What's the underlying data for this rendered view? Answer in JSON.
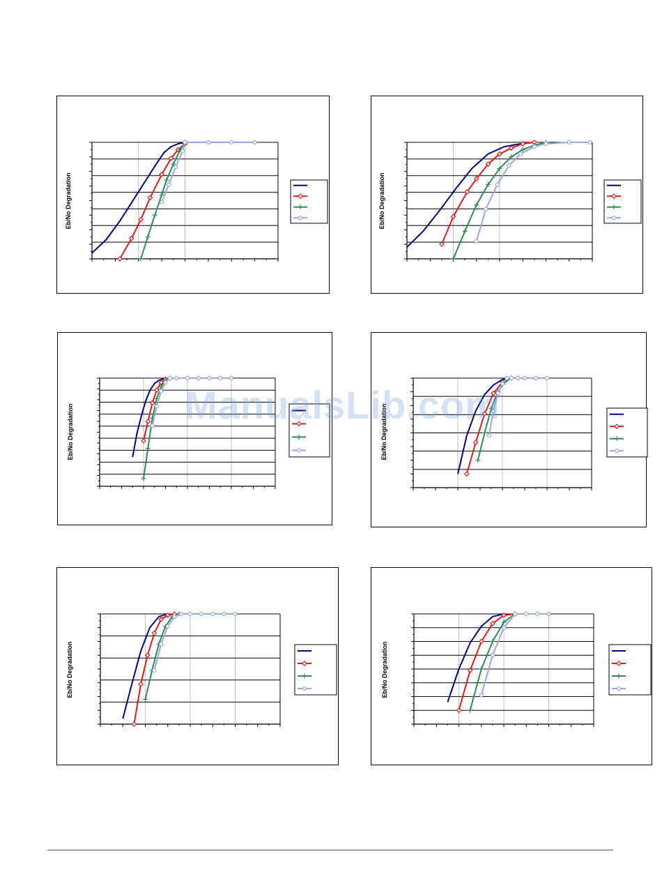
{
  "page": {
    "watermark": "ManualsLib.com"
  },
  "colors": {
    "series": [
      "#000080",
      "#e31a1c",
      "#2e8b57",
      "#9aa5e6"
    ],
    "grid_h": "#000000",
    "grid_v": "#c0c0c0",
    "axis": "#000000"
  },
  "chart_data": [
    {
      "type": "line",
      "ylabel": "Eb/No Degradation",
      "xlim": [
        0,
        8
      ],
      "ylim": [
        0,
        8
      ],
      "x_ticks": 16,
      "y_ticks": 16,
      "series": [
        {
          "marker": "none",
          "x": [
            0,
            0.6,
            1.2,
            1.8,
            2.4,
            2.8,
            3.1,
            3.4,
            3.7,
            4.0
          ],
          "y": [
            0.4,
            1.3,
            2.6,
            4.1,
            5.6,
            6.6,
            7.3,
            7.7,
            7.9,
            8.0
          ]
        },
        {
          "marker": "diamond",
          "x": [
            1.2,
            1.7,
            2.1,
            2.5,
            3.0,
            3.4,
            3.7,
            4.0
          ],
          "y": [
            0,
            1.4,
            2.7,
            4.2,
            5.8,
            6.9,
            7.5,
            7.9
          ]
        },
        {
          "marker": "plus",
          "x": [
            2.1,
            2.4,
            2.7,
            3.0,
            3.2,
            3.5,
            3.8,
            4.0
          ],
          "y": [
            0,
            1.5,
            3.0,
            4.4,
            5.4,
            6.5,
            7.5,
            8.0
          ]
        },
        {
          "marker": "circle",
          "x": [
            3.0,
            3.3,
            3.6,
            3.9,
            4.0,
            5.0,
            6.0,
            7.0
          ],
          "y": [
            3.9,
            5.1,
            6.3,
            7.4,
            8.0,
            8.0,
            8.0,
            8.0
          ]
        }
      ]
    },
    {
      "type": "line",
      "ylabel": "Eb/No Degradation",
      "xlim": [
        0,
        8
      ],
      "ylim": [
        0,
        8
      ],
      "x_ticks": 16,
      "y_ticks": 16,
      "series": [
        {
          "marker": "none",
          "x": [
            0,
            0.7,
            1.4,
            2.1,
            2.8,
            3.5,
            4.2,
            4.9,
            5.5
          ],
          "y": [
            0.8,
            1.9,
            3.3,
            4.8,
            6.2,
            7.2,
            7.7,
            7.9,
            8.0
          ]
        },
        {
          "marker": "diamond",
          "x": [
            1.5,
            2.0,
            2.6,
            3.0,
            3.5,
            4.0,
            4.5,
            5.0,
            5.5
          ],
          "y": [
            1.0,
            2.9,
            4.6,
            5.5,
            6.5,
            7.2,
            7.6,
            7.9,
            8.0
          ]
        },
        {
          "marker": "plus",
          "x": [
            2.0,
            2.5,
            3.0,
            3.5,
            4.0,
            4.5,
            5.0,
            5.5,
            6.0
          ],
          "y": [
            0,
            1.9,
            3.7,
            5.1,
            6.2,
            7.0,
            7.5,
            7.8,
            8.0
          ]
        },
        {
          "marker": "circle",
          "x": [
            3.0,
            3.4,
            3.9,
            4.4,
            4.9,
            5.5,
            6.0,
            7.0,
            7.9
          ],
          "y": [
            1.2,
            3.4,
            5.1,
            6.4,
            7.2,
            7.7,
            7.9,
            8.0,
            8.0
          ]
        }
      ]
    },
    {
      "type": "line",
      "ylabel": "Eb/No Degradation",
      "xlim": [
        0,
        8
      ],
      "ylim": [
        0,
        10
      ],
      "x_ticks": 16,
      "y_ticks": 20,
      "series": [
        {
          "marker": "none",
          "x": [
            1.5,
            1.7,
            1.9,
            2.1,
            2.3,
            2.5,
            2.7,
            3.0
          ],
          "y": [
            2.7,
            4.9,
            6.5,
            7.9,
            8.9,
            9.5,
            9.8,
            10.0
          ]
        },
        {
          "marker": "diamond",
          "x": [
            2.0,
            2.2,
            2.4,
            2.6,
            2.8,
            3.0,
            3.2
          ],
          "y": [
            4.2,
            6.0,
            7.7,
            8.9,
            9.6,
            9.9,
            10.0
          ]
        },
        {
          "marker": "plus",
          "x": [
            2.0,
            2.2,
            2.4,
            2.6,
            2.8,
            3.0,
            3.2
          ],
          "y": [
            0.7,
            3.5,
            6.3,
            8.1,
            9.2,
            9.8,
            10.0
          ]
        },
        {
          "marker": "circle",
          "x": [
            2.4,
            2.6,
            2.8,
            3.0,
            3.2,
            3.5,
            4.0,
            4.5,
            5.0,
            5.5,
            6.0
          ],
          "y": [
            5.6,
            7.4,
            8.8,
            9.6,
            10.0,
            10.0,
            10.0,
            10.0,
            10.0,
            10.0,
            10.0
          ]
        }
      ]
    },
    {
      "type": "line",
      "ylabel": "Eb/No Degradation",
      "xlim": [
        0,
        8
      ],
      "ylim": [
        0,
        8
      ],
      "x_ticks": 16,
      "y_ticks": 16,
      "series": [
        {
          "marker": "none",
          "x": [
            2.0,
            2.4,
            2.8,
            3.2,
            3.6,
            4.0,
            4.4
          ],
          "y": [
            1.0,
            3.8,
            5.6,
            6.8,
            7.5,
            7.9,
            8.0
          ]
        },
        {
          "marker": "diamond",
          "x": [
            2.4,
            2.8,
            3.2,
            3.6,
            4.0,
            4.4
          ],
          "y": [
            1.0,
            3.3,
            5.4,
            6.9,
            7.7,
            8.0
          ]
        },
        {
          "marker": "plus",
          "x": [
            2.9,
            3.2,
            3.5,
            3.8,
            4.1,
            4.4,
            4.7
          ],
          "y": [
            2.0,
            4.0,
            5.8,
            7.0,
            7.7,
            8.0,
            8.0
          ]
        },
        {
          "marker": "circle",
          "x": [
            3.4,
            3.6,
            3.8,
            4.0,
            4.2,
            4.4,
            4.7,
            5.0,
            5.5,
            6.0
          ],
          "y": [
            3.8,
            5.6,
            6.9,
            7.6,
            8.0,
            8.0,
            8.0,
            8.0,
            8.0,
            8.0
          ]
        }
      ]
    },
    {
      "type": "line",
      "ylabel": "Eb/No Degradation",
      "xlim": [
        0,
        8
      ],
      "ylim": [
        0,
        8
      ],
      "x_ticks": 16,
      "y_ticks": 16,
      "series": [
        {
          "marker": "none",
          "x": [
            1.0,
            1.4,
            1.8,
            2.2,
            2.6,
            3.0
          ],
          "y": [
            0.4,
            2.9,
            5.3,
            7.0,
            7.8,
            8.0
          ]
        },
        {
          "marker": "diamond",
          "x": [
            1.5,
            1.8,
            2.1,
            2.4,
            2.7,
            3.0,
            3.3
          ],
          "y": [
            0,
            2.9,
            5.0,
            6.6,
            7.6,
            7.9,
            8.0
          ]
        },
        {
          "marker": "plus",
          "x": [
            2.0,
            2.3,
            2.6,
            2.9,
            3.2,
            3.5
          ],
          "y": [
            1.8,
            3.9,
            5.8,
            7.1,
            7.8,
            8.0
          ]
        },
        {
          "marker": "circle",
          "x": [
            2.4,
            2.7,
            3.0,
            3.3,
            3.6,
            4.0,
            4.5,
            5.0,
            5.5,
            6.0
          ],
          "y": [
            3.9,
            5.8,
            7.1,
            7.8,
            8.0,
            8.0,
            8.0,
            8.0,
            8.0,
            8.0
          ]
        }
      ]
    },
    {
      "type": "line",
      "ylabel": "Eb/No Degradation",
      "xlim": [
        0,
        8
      ],
      "ylim": [
        0,
        8
      ],
      "x_ticks": 16,
      "y_ticks": 16,
      "series": [
        {
          "marker": "none",
          "x": [
            1.5,
            2.0,
            2.5,
            3.0,
            3.5,
            4.0
          ],
          "y": [
            1.6,
            4.0,
            5.9,
            7.1,
            7.8,
            8.0
          ]
        },
        {
          "marker": "diamond",
          "x": [
            2.0,
            2.5,
            3.0,
            3.5,
            4.0,
            4.5
          ],
          "y": [
            1.0,
            3.9,
            6.0,
            7.3,
            7.9,
            8.0
          ]
        },
        {
          "marker": "plus",
          "x": [
            2.5,
            3.0,
            3.5,
            4.0,
            4.5
          ],
          "y": [
            1.0,
            4.0,
            6.0,
            7.4,
            8.0
          ]
        },
        {
          "marker": "circle",
          "x": [
            3.0,
            3.5,
            4.0,
            4.5,
            5.0,
            5.5,
            6.0
          ],
          "y": [
            2.1,
            5.0,
            7.0,
            8.0,
            8.0,
            8.0,
            8.0
          ]
        }
      ]
    }
  ]
}
